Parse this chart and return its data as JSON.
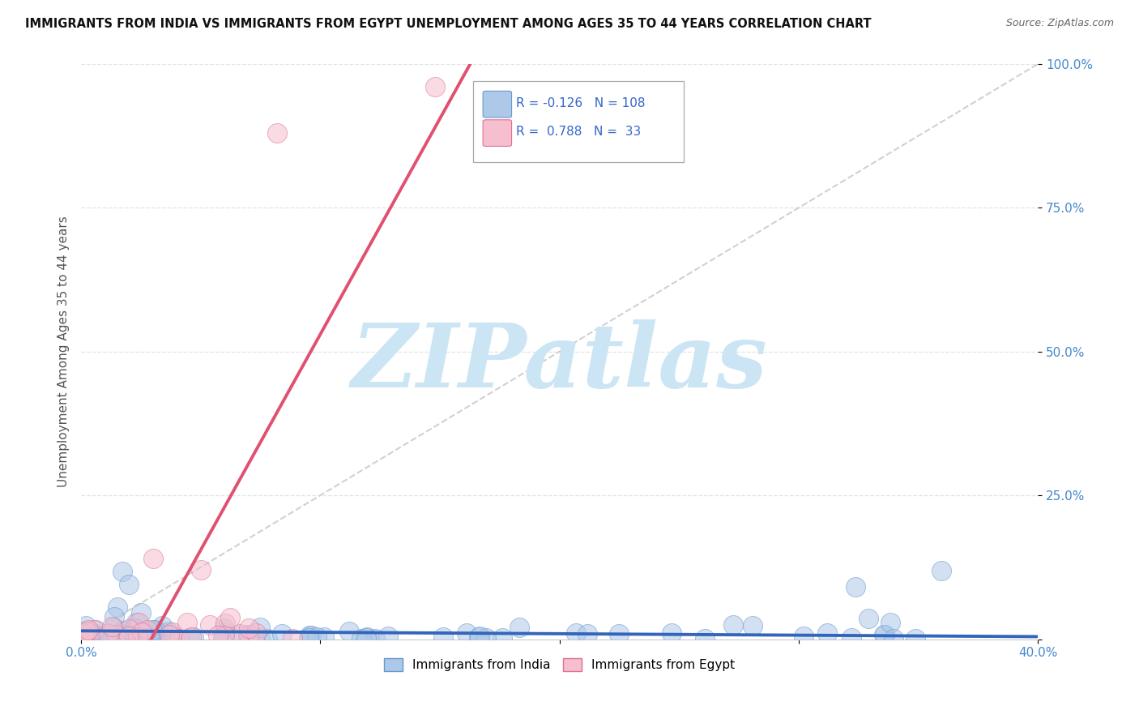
{
  "title": "IMMIGRANTS FROM INDIA VS IMMIGRANTS FROM EGYPT UNEMPLOYMENT AMONG AGES 35 TO 44 YEARS CORRELATION CHART",
  "source": "Source: ZipAtlas.com",
  "ylabel": "Unemployment Among Ages 35 to 44 years",
  "xlim": [
    0.0,
    0.4
  ],
  "ylim": [
    0.0,
    1.0
  ],
  "india_color": "#adc8e8",
  "india_edge_color": "#6699cc",
  "egypt_color": "#f5bfcf",
  "egypt_edge_color": "#e07090",
  "india_R": -0.126,
  "india_N": 108,
  "egypt_R": 0.788,
  "egypt_N": 33,
  "india_line_color": "#3366bb",
  "egypt_line_color": "#e05070",
  "ref_line_color": "#cccccc",
  "watermark_color": "#cce5f5",
  "background_color": "#ffffff",
  "grid_color": "#dddddd",
  "legend_color": "#3366cc",
  "tick_color": "#4488cc"
}
